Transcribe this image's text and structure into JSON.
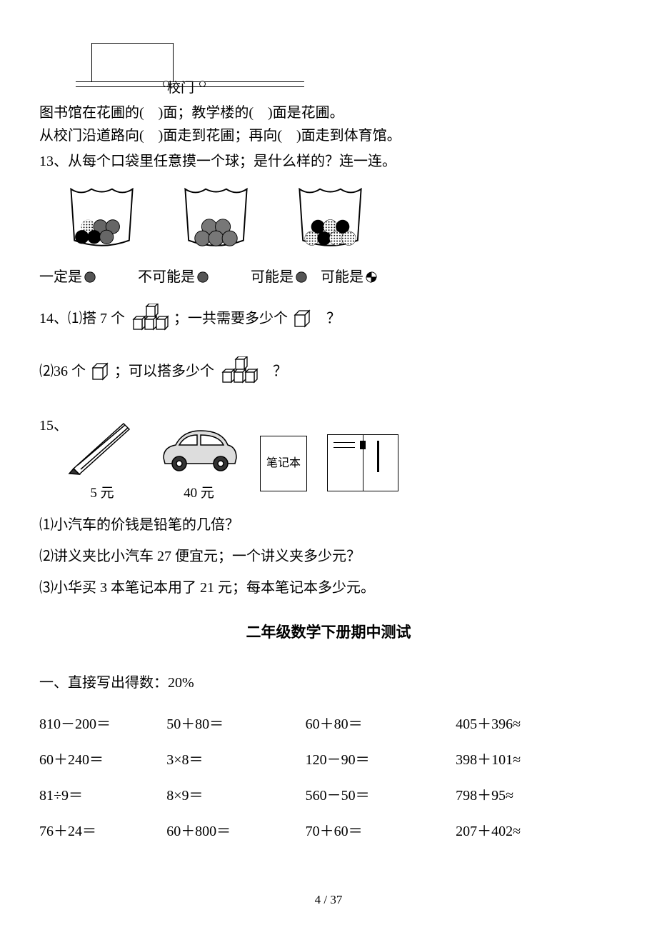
{
  "diagram": {
    "gate": "校门"
  },
  "q12": {
    "line1_a": "图书馆在花圃的(",
    "line1_b": ")面；教学楼的(",
    "line1_c": ")面是花圃。",
    "line2_a": "从校门沿道路向(",
    "line2_b": ")面走到花圃；再向(",
    "line2_c": ")面走到体育馆。"
  },
  "q13": {
    "prompt": "13、从每个口袋里任意摸一个球；是什么样的？连一连。",
    "opt1": "一定是",
    "opt2": "不可能是",
    "opt3": "可能是",
    "opt4": "可能是"
  },
  "q14": {
    "part1_a": "14、⑴搭 7 个",
    "part1_b": "；一共需要多少个",
    "part1_c": "？",
    "part2_a": "⑵36 个",
    "part2_b": "；可以搭多少个",
    "part2_c": "？"
  },
  "q15": {
    "label": "15、",
    "price1": "5 元",
    "price2": "40 元",
    "notebook": "笔记本",
    "sub1": "⑴小汽车的价钱是铅笔的几倍？",
    "sub2": "⑵讲义夹比小汽车 27 便宜元；一个讲义夹多少元？",
    "sub3": "⑶小华买 3 本笔记本用了 21 元；每本笔记本多少元。"
  },
  "title": "二年级数学下册期中测试",
  "section1": "一、直接写出得数：20%",
  "calc": {
    "rows": [
      [
        "810－200＝",
        "50＋80＝",
        "60＋80＝",
        "405＋396≈"
      ],
      [
        "60＋240＝",
        "3×8＝",
        "120－90＝",
        "398＋101≈"
      ],
      [
        "81÷9＝",
        "8×9＝",
        "560－50＝",
        "798＋95≈"
      ],
      [
        "76＋24＝",
        "60＋800＝",
        "70＋60＝",
        "207＋402≈"
      ]
    ]
  },
  "pagenum": "4 / 37"
}
